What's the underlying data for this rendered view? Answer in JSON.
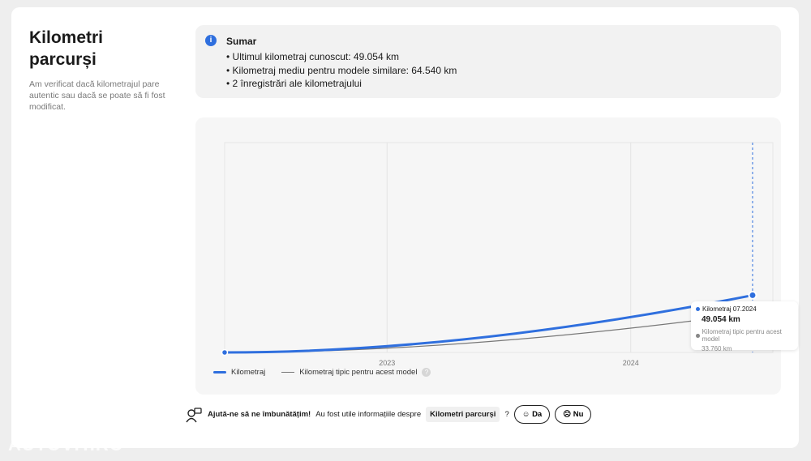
{
  "title": "Kilometri parcurși",
  "description": "Am verificat dacă kilometrajul pare autentic sau dacă se poate să fi fost modificat.",
  "summary": {
    "icon": "info-icon",
    "title": "Sumar",
    "items": [
      "Ultimul kilometraj cunoscut: 49.054 km",
      "Kilometraj mediu pentru modele similare: 64.540 km",
      "2 înregistrări ale kilometrajului"
    ]
  },
  "chart_data": {
    "type": "line",
    "x_ticks": [
      "2023",
      "2024"
    ],
    "xlim": [
      "2022-05",
      "2024-08"
    ],
    "ylim": [
      0,
      180000
    ],
    "grid": true,
    "legend_position": "bottom-left",
    "series": [
      {
        "name": "Kilometraj",
        "color": "#2f6fde",
        "points": [
          [
            "2022-05",
            0
          ],
          [
            "2024-07",
            49054
          ]
        ]
      },
      {
        "name": "Kilometraj tipic pentru acest model",
        "color": "#777777",
        "points": [
          [
            "2022-05",
            0
          ],
          [
            "2024-07",
            33760
          ]
        ]
      }
    ]
  },
  "legend": {
    "help_icon": "?"
  },
  "tooltip": {
    "label": "Kilometraj 07.2024",
    "value": "49.054 km",
    "typical_label": "Kilometraj tipic pentru acest model",
    "typical_value": "33.760 km"
  },
  "feedback": {
    "icon": "feedback-person-icon",
    "bold": "Ajută-ne să ne îmbunătățim!",
    "text": "Au fost utile informațiile despre",
    "tag": "Kilometri parcurși",
    "q": "?",
    "yes": "☺ Da",
    "no": "☹ Nu"
  },
  "watermark": "AUTOVIT.RO"
}
